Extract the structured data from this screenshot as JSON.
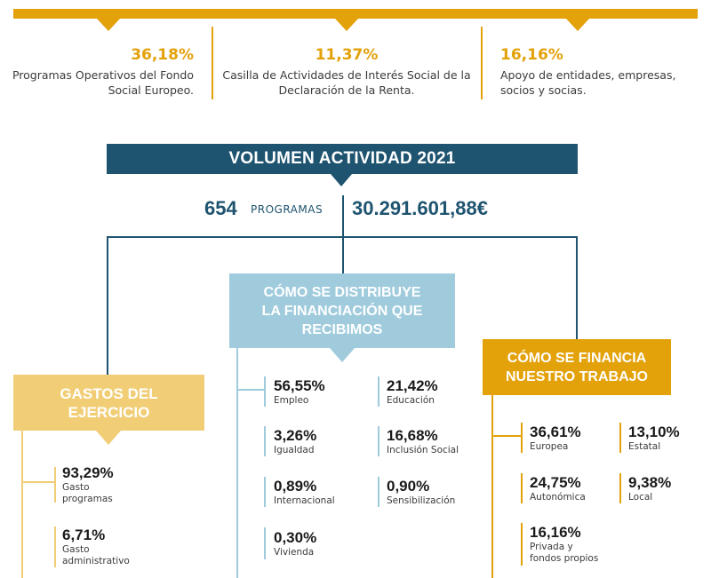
{
  "top_stats": [
    {
      "pct": "36,18%",
      "desc_lines": [
        "Programas Operativos del Fondo",
        "Social Europeo."
      ]
    },
    {
      "pct": "11,37%",
      "desc_lines": [
        "Casilla de Actividades de Interés Social de la",
        "Declaración de la Renta."
      ]
    },
    {
      "pct": "16,16%",
      "desc_lines": [
        "Apoyo de entidades, empresas,",
        "socios y socias."
      ]
    }
  ],
  "banner": {
    "title": "VOLUMEN ACTIVIDAD 2021"
  },
  "totals": {
    "programs_count": "654",
    "programs_label": "PROGRAMAS",
    "amount": "30.291.601,88€"
  },
  "gastos": {
    "title_lines": [
      "GASTOS DEL",
      "EJERCICIO"
    ],
    "items": [
      {
        "pct": "93,29%",
        "label_lines": [
          "Gasto",
          "programas"
        ]
      },
      {
        "pct": "6,71%",
        "label_lines": [
          "Gasto",
          "administrativo"
        ]
      }
    ]
  },
  "distribucion": {
    "title_lines": [
      "CÓMO SE DISTRIBUYE",
      "LA FINANCIACIÓN QUE",
      "RECIBIMOS"
    ],
    "left_items": [
      {
        "pct": "56,55%",
        "label": "Empleo"
      },
      {
        "pct": "3,26%",
        "label": "Igualdad"
      },
      {
        "pct": "0,89%",
        "label": "Internacional"
      },
      {
        "pct": "0,30%",
        "label": "Vivienda"
      }
    ],
    "right_items": [
      {
        "pct": "21,42%",
        "label": "Educación"
      },
      {
        "pct": "16,68%",
        "label": "Inclusión Social"
      },
      {
        "pct": "0,90%",
        "label": "Sensibilización"
      }
    ]
  },
  "financiacion": {
    "title_lines": [
      "CÓMO SE FINANCIA",
      "NUESTRO TRABAJO"
    ],
    "left_items": [
      {
        "pct": "36,61%",
        "label_lines": [
          "Europea"
        ]
      },
      {
        "pct": "24,75%",
        "label_lines": [
          "Autonómica"
        ]
      },
      {
        "pct": "16,16%",
        "label_lines": [
          "Privada y",
          "fondos propios"
        ]
      }
    ],
    "right_items": [
      {
        "pct": "13,10%",
        "label_lines": [
          "Estatal"
        ]
      },
      {
        "pct": "9,38%",
        "label_lines": [
          "Local"
        ]
      }
    ]
  },
  "colors": {
    "orange": "#e3a10a",
    "navy": "#1f5470",
    "light_blue": "#9fcbdc",
    "sand": "#f1cd76"
  }
}
